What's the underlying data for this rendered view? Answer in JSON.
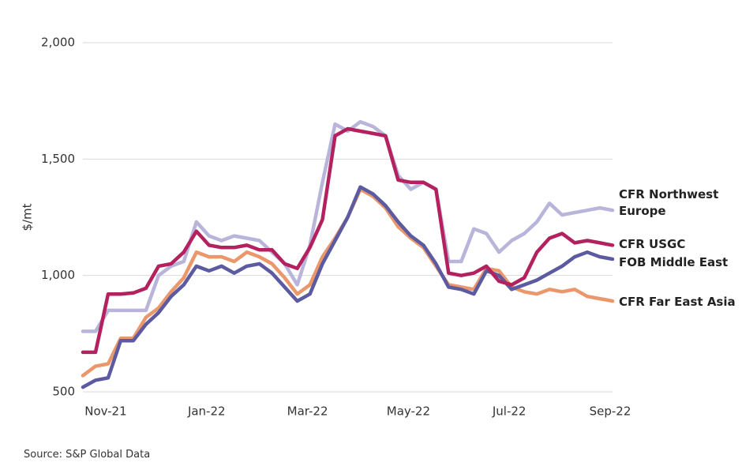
{
  "chart_data": {
    "type": "line",
    "y_label": "$/mt",
    "source": "Source: S&P Global Data",
    "categories": [
      null,
      null,
      "Nov-21",
      null,
      null,
      null,
      null,
      null,
      null,
      null,
      "Jan-22",
      null,
      null,
      null,
      null,
      null,
      null,
      null,
      "Mar-22",
      null,
      null,
      null,
      null,
      null,
      null,
      null,
      "May-22",
      null,
      null,
      null,
      null,
      null,
      null,
      null,
      "Jul-22",
      null,
      null,
      null,
      null,
      null,
      null,
      null,
      "Sep-22"
    ],
    "ylim": [
      500,
      2000
    ],
    "yticks": [
      500,
      {
        "value": 1000,
        "label": "1,000"
      },
      {
        "value": 1500,
        "label": "1,500"
      },
      {
        "value": 2000,
        "label": "2,000"
      }
    ],
    "grid": true,
    "series": [
      {
        "name": "CFR Northwest Europe",
        "color": "#b9b5da",
        "values": [
          760,
          760,
          850,
          850,
          850,
          850,
          1000,
          1040,
          1060,
          1230,
          1170,
          1150,
          1170,
          1160,
          1150,
          1100,
          1050,
          960,
          1130,
          1400,
          1650,
          1620,
          1660,
          1640,
          1600,
          1430,
          1370,
          1400,
          1370,
          1060,
          1060,
          1200,
          1180,
          1100,
          1150,
          1180,
          1230,
          1310,
          1260,
          1270,
          1280,
          1290,
          1280
        ]
      },
      {
        "name": "CFR USGC",
        "color": "#b3225e",
        "values": [
          670,
          670,
          920,
          920,
          925,
          945,
          1040,
          1050,
          1100,
          1190,
          1130,
          1120,
          1120,
          1130,
          1110,
          1110,
          1050,
          1030,
          1120,
          1240,
          1600,
          1630,
          1620,
          1610,
          1600,
          1410,
          1400,
          1400,
          1370,
          1010,
          1000,
          1010,
          1040,
          975,
          960,
          990,
          1100,
          1160,
          1180,
          1140,
          1150,
          1140,
          1130
        ]
      },
      {
        "name": "FOB Middle East",
        "color": "#5c5ba1",
        "values": [
          520,
          550,
          560,
          720,
          720,
          790,
          840,
          910,
          960,
          1040,
          1020,
          1040,
          1010,
          1040,
          1050,
          1010,
          950,
          890,
          920,
          1050,
          1150,
          1250,
          1380,
          1350,
          1300,
          1230,
          1170,
          1130,
          1050,
          950,
          940,
          920,
          1020,
          1000,
          940,
          960,
          980,
          1010,
          1040,
          1080,
          1100,
          1080,
          1070
        ]
      },
      {
        "name": "CFR Far East Asia",
        "color": "#eb976c",
        "values": [
          570,
          610,
          620,
          730,
          730,
          820,
          860,
          930,
          990,
          1100,
          1080,
          1080,
          1060,
          1100,
          1080,
          1050,
          990,
          920,
          960,
          1080,
          1160,
          1250,
          1370,
          1340,
          1290,
          1210,
          1160,
          1120,
          1040,
          960,
          950,
          940,
          1030,
          1020,
          950,
          930,
          920,
          940,
          930,
          940,
          910,
          900,
          890
        ]
      }
    ]
  }
}
